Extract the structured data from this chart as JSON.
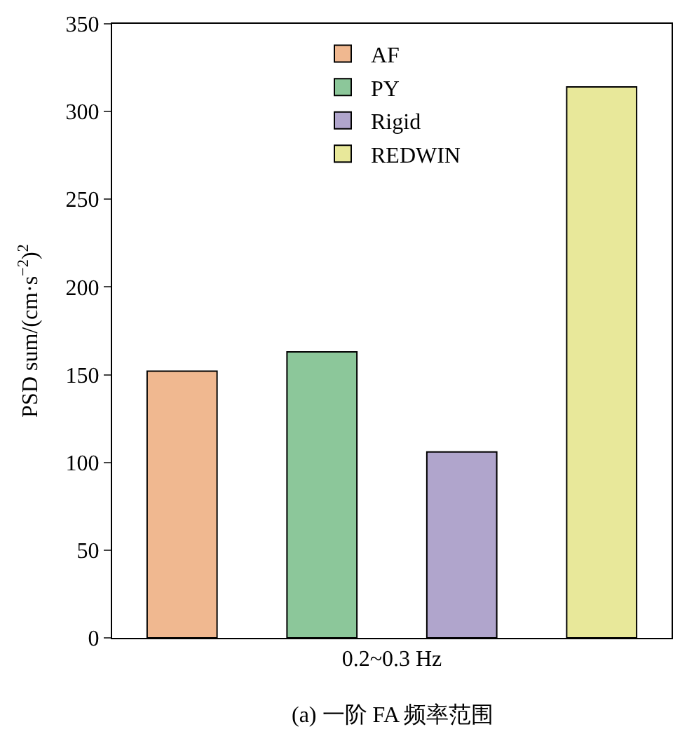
{
  "chart_data": {
    "type": "bar",
    "ylabel": "PSD sum/(cm·s$^{−2}$)$^{2}$",
    "categories": [
      "0.2~0.3 Hz"
    ],
    "series": [
      {
        "name": "AF",
        "color": "#f0b890",
        "values": [
          152
        ]
      },
      {
        "name": "PY",
        "color": "#8cc79a",
        "values": [
          163
        ]
      },
      {
        "name": "Rigid",
        "color": "#b0a5cc",
        "values": [
          106
        ]
      },
      {
        "name": "REDWIN",
        "color": "#e8e89a",
        "values": [
          314
        ]
      }
    ],
    "ylim": [
      0,
      350
    ],
    "yticks": [
      0,
      50,
      100,
      150,
      200,
      250,
      300,
      350
    ],
    "legend": "top",
    "annotations": [
      "(a) 一阶 FA 频率范围"
    ]
  }
}
